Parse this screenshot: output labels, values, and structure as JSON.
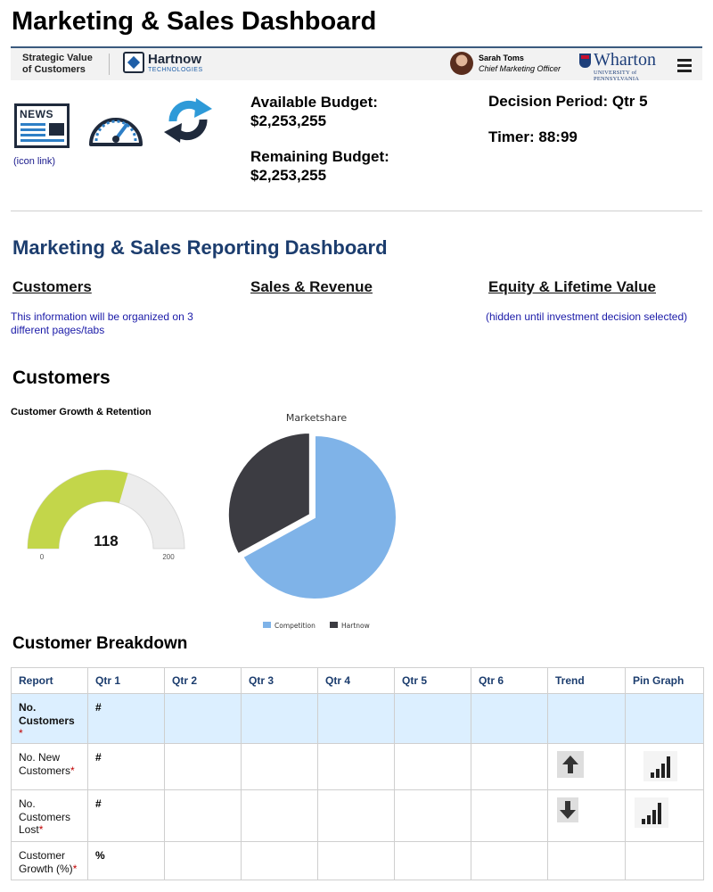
{
  "page_title": "Marketing & Sales Dashboard",
  "topbar": {
    "strategic_line1": "Strategic Value",
    "strategic_line2": "of Customers",
    "company_name": "Hartnow",
    "company_sub": "TECHNOLOGIES",
    "user_name": "Sarah Toms",
    "user_role": "Chief Marketing Officer",
    "university_name": "Wharton",
    "university_sub": "UNIVERSITY of PENNSYLVANIA",
    "menu_icon": "hamburger-menu-icon"
  },
  "icons": {
    "news_text": "NEWS",
    "icon_link": "(icon link)",
    "news_icon": "news-icon",
    "gauge_icon": "gauge-icon",
    "refresh_icon": "refresh-icon"
  },
  "budget": {
    "available_label": "Available Budget:",
    "available_value": "$2,253,255",
    "remaining_label": "Remaining Budget:",
    "remaining_value": "$2,253,255"
  },
  "decision_period": "Decision Period: Qtr 5",
  "timer": "Timer: 88:99",
  "report_title": "Marketing & Sales Reporting Dashboard",
  "tabs": {
    "customers": "Customers",
    "sales": "Sales & Revenue",
    "equity": "Equity & Lifetime Value"
  },
  "notes": {
    "left": "This information will be organized on 3 different pages/tabs",
    "right": "(hidden until investment decision selected)"
  },
  "customers_section": {
    "heading": "Customers",
    "growth_label": "Customer Growth & Retention"
  },
  "gauge": {
    "value": 118,
    "min": 0,
    "max": 200,
    "value_label": "118",
    "min_label": "0",
    "max_label": "200",
    "fill_color": "#c3d64a",
    "track_color": "#ececec"
  },
  "chart_data": {
    "type": "pie",
    "title": "Marketshare",
    "categories": [
      "Competition",
      "Hartnow"
    ],
    "values": [
      67,
      33
    ],
    "colors": [
      "#7fb3e8",
      "#3c3c42"
    ],
    "legend": "bottom"
  },
  "breakdown": {
    "heading": "Customer Breakdown",
    "columns": [
      "Report",
      "Qtr 1",
      "Qtr 2",
      "Qtr 3",
      "Qtr 4",
      "Qtr 5",
      "Qtr 6",
      "Trend",
      "Pin Graph"
    ],
    "rows": [
      {
        "label": "No. Customers",
        "asterisk": "*",
        "qtr1": "#",
        "trend": "",
        "highlight": true
      },
      {
        "label": "No. New Customers",
        "asterisk": "*",
        "qtr1": "#",
        "trend": "up-arrow-icon",
        "pin": "bar-graph-icon"
      },
      {
        "label": "No. Customers Lost",
        "asterisk": "*",
        "qtr1": "#",
        "trend": "down-arrow-icon",
        "pin": "bar-graph-icon"
      },
      {
        "label": "Customer Growth (%)",
        "asterisk": "*",
        "qtr1": "%",
        "trend": "",
        "pin": ""
      }
    ]
  }
}
